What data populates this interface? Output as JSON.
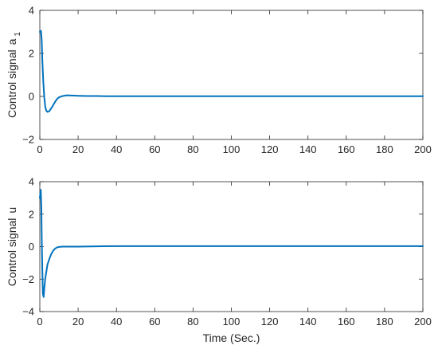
{
  "chart_data": [
    {
      "type": "line",
      "title": "",
      "xlabel": "",
      "ylabel": "Control signal",
      "ylabel_sub": "1",
      "ylabel_sym": "a",
      "xlim": [
        0,
        200
      ],
      "ylim": [
        -2,
        4
      ],
      "xticks": [
        0,
        20,
        40,
        60,
        80,
        100,
        120,
        140,
        160,
        180,
        200
      ],
      "yticks": [
        -2,
        0,
        2,
        4
      ],
      "grid": false,
      "color": "#0072BD",
      "x": [
        0,
        0.6,
        1,
        1.3,
        1.8,
        2.3,
        2.8,
        3.3,
        4,
        5,
        6,
        7,
        8,
        9,
        10,
        12,
        14,
        17,
        20,
        25,
        30,
        35,
        40,
        60,
        80,
        100,
        120,
        140,
        160,
        180,
        200
      ],
      "y": [
        3.0,
        3.05,
        2.6,
        1.7,
        0.7,
        0.0,
        -0.45,
        -0.65,
        -0.72,
        -0.68,
        -0.55,
        -0.4,
        -0.25,
        -0.12,
        -0.04,
        0.02,
        0.05,
        0.04,
        0.03,
        0.02,
        0.02,
        0.01,
        0.01,
        0.01,
        0.01,
        0.01,
        0.01,
        0.01,
        0.01,
        0.01,
        0.01
      ]
    },
    {
      "type": "line",
      "title": "",
      "xlabel": "Time (Sec.)",
      "ylabel": "Control signal",
      "ylabel_sub": "",
      "ylabel_sym": "u",
      "xlim": [
        0,
        200
      ],
      "ylim": [
        -4,
        4
      ],
      "xticks": [
        0,
        20,
        40,
        60,
        80,
        100,
        120,
        140,
        160,
        180,
        200
      ],
      "yticks": [
        -4,
        -2,
        0,
        2,
        4
      ],
      "grid": false,
      "color": "#0072BD",
      "x": [
        0,
        0.5,
        0.8,
        1.0,
        1.3,
        1.6,
        2.0,
        2.4,
        2.8,
        3.2,
        3.6,
        4,
        5,
        6,
        7,
        8,
        9,
        10,
        12,
        15,
        20,
        30,
        40,
        60,
        80,
        100,
        120,
        140,
        160,
        180,
        200
      ],
      "y": [
        3.0,
        3.5,
        2.4,
        0.6,
        -1.4,
        -2.9,
        -3.1,
        -2.5,
        -2.0,
        -1.7,
        -1.4,
        -1.1,
        -0.75,
        -0.45,
        -0.25,
        -0.12,
        -0.05,
        -0.02,
        0.0,
        0.0,
        0.0,
        0.02,
        0.03,
        0.03,
        0.03,
        0.03,
        0.03,
        0.03,
        0.03,
        0.03,
        0.03
      ]
    }
  ]
}
